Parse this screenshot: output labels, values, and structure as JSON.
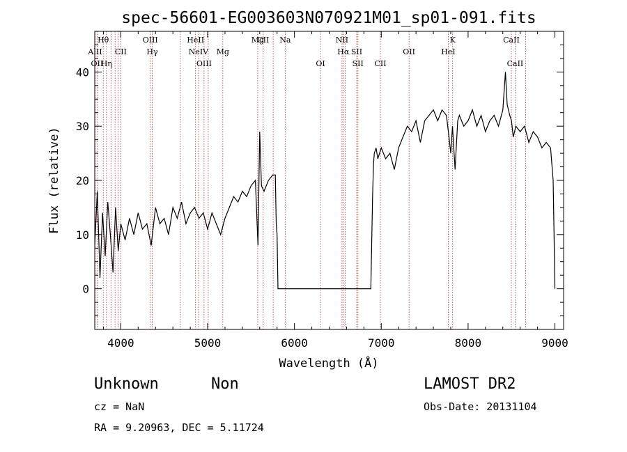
{
  "chart_data": {
    "type": "line",
    "title": "spec-56601-EG003603N070921M01_sp01-091.fits",
    "xlabel": "Wavelength (Å)",
    "ylabel": "Flux (relative)",
    "xlim": [
      3700,
      9100
    ],
    "ylim": [
      -7.5,
      47.5
    ],
    "xticks": [
      4000,
      5000,
      6000,
      7000,
      8000,
      9000
    ],
    "yticks": [
      0,
      10,
      20,
      30,
      40
    ],
    "grid": false,
    "series": [
      {
        "x": [
          3700,
          3730,
          3760,
          3790,
          3820,
          3850,
          3880,
          3910,
          3940,
          3970,
          4000,
          4050,
          4100,
          4150,
          4200,
          4250,
          4300,
          4350,
          4400,
          4450,
          4500,
          4550,
          4600,
          4650,
          4700,
          4750,
          4800,
          4850,
          4900,
          4950,
          5000,
          5050,
          5100,
          5150,
          5200,
          5250,
          5300,
          5350,
          5400,
          5450,
          5500,
          5550,
          5580,
          5600,
          5620,
          5650,
          5700,
          5750,
          5780,
          5790,
          5800,
          5810,
          5820,
          5830,
          6000,
          6500,
          6880,
          6900,
          6910,
          6920,
          6940,
          6960,
          6980,
          7000,
          7050,
          7100,
          7150,
          7200,
          7250,
          7300,
          7350,
          7400,
          7450,
          7500,
          7550,
          7600,
          7650,
          7700,
          7750,
          7780,
          7800,
          7820,
          7850,
          7880,
          7900,
          7950,
          8000,
          8050,
          8100,
          8150,
          8200,
          8250,
          8300,
          8350,
          8400,
          8430,
          8450,
          8480,
          8500,
          8520,
          8550,
          8600,
          8650,
          8700,
          8750,
          8800,
          8850,
          8900,
          8950,
          8980,
          8990,
          9000
        ],
        "y": [
          8,
          18,
          2,
          14,
          6,
          16,
          10,
          3,
          15,
          7,
          12,
          9,
          13,
          10,
          14,
          11,
          12,
          8,
          15,
          12,
          13,
          10,
          15,
          13,
          16,
          12,
          14,
          15,
          13,
          14,
          11,
          14,
          12,
          10,
          13,
          15,
          17,
          16,
          18,
          17,
          19,
          20,
          8,
          29,
          19,
          18,
          20,
          21,
          21,
          12,
          10,
          0,
          0,
          0,
          0,
          0,
          0,
          17,
          23,
          25,
          26,
          24,
          25,
          26,
          24,
          25,
          22,
          26,
          28,
          30,
          29,
          31,
          27,
          31,
          32,
          33,
          31,
          33,
          32,
          28,
          25,
          30,
          22,
          31,
          32,
          30,
          31,
          33,
          30,
          32,
          29,
          31,
          32,
          30,
          33,
          40,
          34,
          32,
          31,
          28,
          30,
          29,
          30,
          27,
          29,
          28,
          26,
          27,
          26,
          20,
          10,
          0
        ]
      }
    ],
    "lines": [
      {
        "w": 3704,
        "label": "AlII",
        "row": 2
      },
      {
        "w": 3727,
        "label": "OII",
        "row": 3
      },
      {
        "w": 3798,
        "label": "Hθ",
        "row": 1
      },
      {
        "w": 3835,
        "label": "Hη",
        "row": 3
      },
      {
        "w": 3889,
        "label": "",
        "row": 0
      },
      {
        "w": 3934,
        "label": "",
        "row": 0
      },
      {
        "w": 3969,
        "label": "",
        "row": 0
      },
      {
        "w": 4000,
        "label": "CII",
        "row": 2
      },
      {
        "w": 4340,
        "label": "OIII",
        "row": 1
      },
      {
        "w": 4362,
        "label": "Hγ",
        "row": 2
      },
      {
        "w": 4686,
        "label": "",
        "row": 0
      },
      {
        "w": 4861,
        "label": "HeII",
        "row": 1
      },
      {
        "w": 4895,
        "label": "NeIV",
        "row": 2
      },
      {
        "w": 4959,
        "label": "OIII",
        "row": 3
      },
      {
        "w": 5007,
        "label": "",
        "row": 0
      },
      {
        "w": 5175,
        "label": "Mg",
        "row": 2
      },
      {
        "w": 5577,
        "label": "Mg",
        "row": 1
      },
      {
        "w": 5640,
        "label": "CII",
        "row": 1
      },
      {
        "w": 5755,
        "label": "",
        "row": 0
      },
      {
        "w": 5893,
        "label": "Na",
        "row": 1
      },
      {
        "w": 6300,
        "label": "OI",
        "row": 3
      },
      {
        "w": 6548,
        "label": "NII",
        "row": 1
      },
      {
        "w": 6563,
        "label": "Hα",
        "row": 2
      },
      {
        "w": 6584,
        "label": "",
        "row": 0
      },
      {
        "w": 6717,
        "label": "SII",
        "row": 2
      },
      {
        "w": 6731,
        "label": "SII",
        "row": 3
      },
      {
        "w": 6990,
        "label": "CII",
        "row": 3
      },
      {
        "w": 7320,
        "label": "OII",
        "row": 2
      },
      {
        "w": 7772,
        "label": "HeI",
        "row": 2
      },
      {
        "w": 7822,
        "label": "K",
        "row": 1
      },
      {
        "w": 8498,
        "label": "CaII",
        "row": 1
      },
      {
        "w": 8542,
        "label": "CaII",
        "row": 3
      },
      {
        "w": 8662,
        "label": "",
        "row": 0
      }
    ]
  },
  "info": {
    "type_label": "Unknown",
    "subclass_label": "Non",
    "survey": "LAMOST DR2",
    "cz": "cz = NaN",
    "obs_date": "Obs-Date: 20131104",
    "radec": "RA =   9.20963, DEC =   5.11724"
  }
}
